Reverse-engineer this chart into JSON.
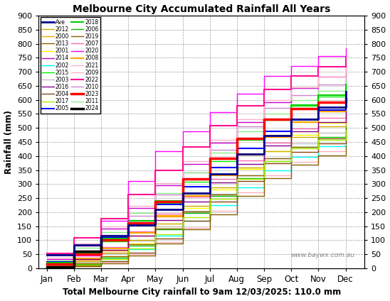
{
  "title": "Melbourne City Accumulated Rainfall All Years",
  "xlabel": "Total Melbourne City rainfall to 9am 12/03/2025: 110.0 mm",
  "ylabel": "Rainfall (mm)",
  "watermark": "www.baywx.com.au",
  "ylim": [
    0,
    900
  ],
  "yticks": [
    0,
    50,
    100,
    150,
    200,
    250,
    300,
    350,
    400,
    450,
    500,
    550,
    600,
    650,
    700,
    750,
    800,
    850,
    900
  ],
  "months": [
    "Jan",
    "Feb",
    "Mar",
    "Apr",
    "May",
    "Jun",
    "Jul",
    "Aug",
    "Sep",
    "Oct",
    "Nov",
    "Dec"
  ],
  "legend_order": [
    [
      "Ave",
      "2012"
    ],
    [
      "2000",
      "2013"
    ],
    [
      "2001",
      "2014"
    ],
    [
      "2002",
      "2015"
    ],
    [
      "2003",
      "2016"
    ],
    [
      "2004",
      "2017"
    ],
    [
      "2005",
      "2018"
    ],
    [
      "2006",
      "2019"
    ],
    [
      "2007",
      "2020"
    ],
    [
      "2008",
      "2021"
    ],
    [
      "2009",
      "2022"
    ],
    [
      "2010",
      "2023"
    ],
    [
      "2011",
      "2024"
    ]
  ],
  "series": {
    "Ave": {
      "color": "#00008B",
      "lw": 2.0,
      "zorder": 10,
      "x": [
        0,
        1,
        2,
        3,
        4,
        5,
        6,
        7,
        8,
        9,
        10,
        11
      ],
      "y": [
        48,
        82,
        115,
        155,
        210,
        268,
        335,
        408,
        472,
        530,
        575,
        630
      ]
    },
    "2000": {
      "color": "#FFA500",
      "lw": 1.0,
      "zorder": 5,
      "x": [
        0,
        1,
        2,
        3,
        4,
        5,
        6,
        7,
        8,
        9,
        10,
        11
      ],
      "y": [
        12,
        30,
        62,
        115,
        185,
        260,
        335,
        405,
        468,
        520,
        558,
        600
      ]
    },
    "2001": {
      "color": "#FFFF00",
      "lw": 1.0,
      "zorder": 5,
      "x": [
        0,
        1,
        2,
        3,
        4,
        5,
        6,
        7,
        8,
        9,
        10,
        11
      ],
      "y": [
        5,
        18,
        42,
        88,
        148,
        215,
        280,
        355,
        418,
        475,
        518,
        560
      ]
    },
    "2002": {
      "color": "#00FFFF",
      "lw": 1.0,
      "zorder": 5,
      "x": [
        0,
        1,
        2,
        3,
        4,
        5,
        6,
        7,
        8,
        9,
        10,
        11
      ],
      "y": [
        2,
        14,
        32,
        68,
        115,
        168,
        225,
        288,
        348,
        398,
        435,
        472
      ]
    },
    "2003": {
      "color": "#C0C0C0",
      "lw": 1.0,
      "zorder": 5,
      "x": [
        0,
        1,
        2,
        3,
        4,
        5,
        6,
        7,
        8,
        9,
        10,
        11
      ],
      "y": [
        8,
        22,
        52,
        98,
        150,
        205,
        265,
        332,
        392,
        445,
        482,
        518
      ]
    },
    "2004": {
      "color": "#8B4513",
      "lw": 1.0,
      "zorder": 5,
      "x": [
        0,
        1,
        2,
        3,
        4,
        5,
        6,
        7,
        8,
        9,
        10,
        11
      ],
      "y": [
        2,
        10,
        25,
        55,
        105,
        168,
        238,
        312,
        375,
        415,
        445,
        475
      ]
    },
    "2005": {
      "color": "#0000FF",
      "lw": 1.5,
      "zorder": 6,
      "x": [
        0,
        1,
        2,
        3,
        4,
        5,
        6,
        7,
        8,
        9,
        10,
        11
      ],
      "y": [
        22,
        58,
        108,
        168,
        228,
        290,
        358,
        428,
        488,
        532,
        565,
        598
      ]
    },
    "2006": {
      "color": "#00BB00",
      "lw": 1.0,
      "zorder": 5,
      "x": [
        0,
        1,
        2,
        3,
        4,
        5,
        6,
        7,
        8,
        9,
        10,
        11
      ],
      "y": [
        5,
        16,
        38,
        80,
        138,
        198,
        258,
        322,
        382,
        432,
        468,
        505
      ]
    },
    "2007": {
      "color": "#FF69B4",
      "lw": 1.0,
      "zorder": 5,
      "x": [
        0,
        1,
        2,
        3,
        4,
        5,
        6,
        7,
        8,
        9,
        10,
        11
      ],
      "y": [
        14,
        38,
        75,
        132,
        195,
        255,
        318,
        385,
        448,
        498,
        535,
        572
      ]
    },
    "2008": {
      "color": "#FFA500",
      "lw": 1.5,
      "zorder": 5,
      "x": [
        0,
        1,
        2,
        3,
        4,
        5,
        6,
        7,
        8,
        9,
        10,
        11
      ],
      "y": [
        10,
        35,
        70,
        125,
        188,
        258,
        332,
        408,
        472,
        522,
        558,
        598
      ]
    },
    "2009": {
      "color": "#FFB0C0",
      "lw": 1.0,
      "zorder": 4,
      "x": [
        0,
        1,
        2,
        3,
        4,
        5,
        6,
        7,
        8,
        9,
        10,
        11
      ],
      "y": [
        2,
        8,
        22,
        50,
        92,
        145,
        205,
        270,
        332,
        380,
        418,
        455
      ]
    },
    "2010": {
      "color": "#CC88CC",
      "lw": 1.0,
      "zorder": 5,
      "x": [
        0,
        1,
        2,
        3,
        4,
        5,
        6,
        7,
        8,
        9,
        10,
        11
      ],
      "y": [
        25,
        62,
        118,
        188,
        262,
        342,
        422,
        505,
        572,
        618,
        655,
        692
      ]
    },
    "2011": {
      "color": "#88EE88",
      "lw": 1.0,
      "zorder": 5,
      "x": [
        0,
        1,
        2,
        3,
        4,
        5,
        6,
        7,
        8,
        9,
        10,
        11
      ],
      "y": [
        28,
        72,
        128,
        198,
        268,
        342,
        412,
        488,
        552,
        598,
        632,
        668
      ]
    },
    "2012": {
      "color": "#CCAA00",
      "lw": 1.0,
      "zorder": 5,
      "x": [
        0,
        1,
        2,
        3,
        4,
        5,
        6,
        7,
        8,
        9,
        10,
        11
      ],
      "y": [
        8,
        25,
        55,
        100,
        158,
        222,
        288,
        358,
        418,
        468,
        505,
        545
      ]
    },
    "2013": {
      "color": "#8B6000",
      "lw": 1.0,
      "zorder": 5,
      "x": [
        0,
        1,
        2,
        3,
        4,
        5,
        6,
        7,
        8,
        9,
        10,
        11
      ],
      "y": [
        4,
        18,
        42,
        85,
        142,
        202,
        262,
        332,
        392,
        432,
        462,
        498
      ]
    },
    "2014": {
      "color": "#CC00CC",
      "lw": 1.0,
      "zorder": 5,
      "x": [
        0,
        1,
        2,
        3,
        4,
        5,
        6,
        7,
        8,
        9,
        10,
        11
      ],
      "y": [
        32,
        80,
        142,
        215,
        295,
        372,
        448,
        522,
        592,
        642,
        682,
        722
      ]
    },
    "2015": {
      "color": "#00EE00",
      "lw": 1.0,
      "zorder": 5,
      "x": [
        0,
        1,
        2,
        3,
        4,
        5,
        6,
        7,
        8,
        9,
        10,
        11
      ],
      "y": [
        15,
        48,
        95,
        158,
        232,
        308,
        382,
        458,
        528,
        578,
        612,
        652
      ]
    },
    "2016": {
      "color": "#880088",
      "lw": 1.0,
      "zorder": 5,
      "x": [
        0,
        1,
        2,
        3,
        4,
        5,
        6,
        7,
        8,
        9,
        10,
        11
      ],
      "y": [
        8,
        32,
        65,
        115,
        172,
        238,
        305,
        372,
        438,
        488,
        522,
        558
      ]
    },
    "2017": {
      "color": "#AAEE00",
      "lw": 1.0,
      "zorder": 5,
      "x": [
        0,
        1,
        2,
        3,
        4,
        5,
        6,
        7,
        8,
        9,
        10,
        11
      ],
      "y": [
        2,
        12,
        32,
        70,
        122,
        182,
        248,
        318,
        382,
        428,
        458,
        492
      ]
    },
    "2018": {
      "color": "#00CC00",
      "lw": 1.5,
      "zorder": 6,
      "x": [
        0,
        1,
        2,
        3,
        4,
        5,
        6,
        7,
        8,
        9,
        10,
        11
      ],
      "y": [
        20,
        55,
        105,
        168,
        240,
        315,
        388,
        462,
        532,
        582,
        618,
        655
      ]
    },
    "2019": {
      "color": "#886000",
      "lw": 1.0,
      "zorder": 5,
      "x": [
        0,
        1,
        2,
        3,
        4,
        5,
        6,
        7,
        8,
        9,
        10,
        11
      ],
      "y": [
        2,
        7,
        18,
        46,
        88,
        138,
        192,
        258,
        322,
        368,
        402,
        438
      ]
    },
    "2020": {
      "color": "#FF00FF",
      "lw": 1.0,
      "zorder": 7,
      "x": [
        0,
        1,
        2,
        3,
        4,
        5,
        6,
        7,
        8,
        9,
        10,
        11
      ],
      "y": [
        5,
        45,
        170,
        310,
        418,
        488,
        555,
        622,
        685,
        720,
        755,
        785
      ]
    },
    "2021": {
      "color": "#FFB0C8",
      "lw": 1.0,
      "zorder": 5,
      "x": [
        0,
        1,
        2,
        3,
        4,
        5,
        6,
        7,
        8,
        9,
        10,
        11
      ],
      "y": [
        38,
        88,
        148,
        222,
        302,
        382,
        458,
        532,
        598,
        645,
        682,
        718
      ]
    },
    "2022": {
      "color": "#FF1090",
      "lw": 1.5,
      "zorder": 7,
      "x": [
        0,
        1,
        2,
        3,
        4,
        5,
        6,
        7,
        8,
        9,
        10,
        11
      ],
      "y": [
        52,
        108,
        178,
        262,
        348,
        432,
        508,
        578,
        638,
        685,
        718,
        752
      ]
    },
    "2023": {
      "color": "#FF0000",
      "lw": 2.5,
      "zorder": 8,
      "x": [
        0,
        1,
        2,
        3,
        4,
        5,
        6,
        7,
        8,
        9,
        10,
        11
      ],
      "y": [
        15,
        50,
        100,
        162,
        238,
        318,
        392,
        462,
        532,
        568,
        592,
        605
      ]
    },
    "2024": {
      "color": "#000000",
      "lw": 2.5,
      "zorder": 9,
      "x": [
        0,
        1,
        2
      ],
      "y": [
        5,
        60,
        110
      ]
    }
  }
}
